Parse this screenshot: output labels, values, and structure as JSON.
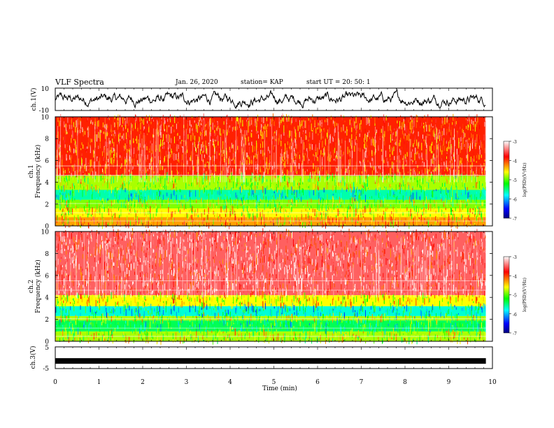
{
  "header": {
    "title": "VLF Spectra",
    "date": "Jan. 26, 2020",
    "station": "station= KAP",
    "start_ut": "start  UT =   20: 50: 1"
  },
  "colors": {
    "colormap": [
      "#000080",
      "#0000ff",
      "#00ffff",
      "#00ff00",
      "#ffff00",
      "#ff0000",
      "#ffffff"
    ],
    "waveform": "#000000"
  },
  "chart_data": [
    {
      "type": "line",
      "panel": "ch1-waveform",
      "ylabel": "ch.1(V)",
      "ylim": [
        -10,
        10
      ],
      "yticks": [
        "10",
        "-10"
      ],
      "xlim": [
        0,
        10
      ],
      "description_values": {
        "typical_min": -8,
        "typical_max": 9
      }
    },
    {
      "type": "heatmap",
      "panel": "ch1-spectrogram",
      "ylabel": "ch.1\nFrequency  (kHz)",
      "ylabel_line1": "ch.1",
      "ylabel_line2": "Frequency  (kHz)",
      "ylim": [
        0,
        10
      ],
      "yticks": [
        "0",
        "2",
        "4",
        "6",
        "8",
        "10"
      ],
      "xlim": [
        0,
        9.85
      ],
      "colorbar": {
        "label": "log(PSD)(V²/Hz)",
        "range": [
          -7,
          -3
        ],
        "ticks": [
          "-3",
          "-4",
          "-5",
          "-6",
          "-7"
        ]
      },
      "bands": [
        {
          "f_from": 0,
          "f_to": 0.8,
          "log_psd": -4.3
        },
        {
          "f_from": 0.8,
          "f_to": 1.6,
          "log_psd": -4.6
        },
        {
          "f_from": 1.6,
          "f_to": 2.4,
          "log_psd": -4.9
        },
        {
          "f_from": 2.4,
          "f_to": 3.3,
          "log_psd": -5.6
        },
        {
          "f_from": 3.3,
          "f_to": 4.6,
          "log_psd": -4.8
        },
        {
          "f_from": 4.6,
          "f_to": 10,
          "log_psd": -3.9
        }
      ]
    },
    {
      "type": "heatmap",
      "panel": "ch2-spectrogram",
      "ylabel_line1": "ch.2",
      "ylabel_line2": "Frequency  (kHz)",
      "ylim": [
        0,
        10
      ],
      "yticks": [
        "0",
        "2",
        "4",
        "6",
        "8",
        "10"
      ],
      "xlim": [
        0,
        9.85
      ],
      "colorbar": {
        "label": "log(PSD)(V²/Hz)",
        "range": [
          -7,
          -3
        ],
        "ticks": [
          "-3",
          "-4",
          "-5",
          "-6",
          "-7"
        ]
      },
      "bands": [
        {
          "f_from": 0,
          "f_to": 0.9,
          "log_psd": -4.8
        },
        {
          "f_from": 0.9,
          "f_to": 1.9,
          "log_psd": -5.4
        },
        {
          "f_from": 1.9,
          "f_to": 2.3,
          "log_psd": -4.8
        },
        {
          "f_from": 2.3,
          "f_to": 3.2,
          "log_psd": -5.7
        },
        {
          "f_from": 3.2,
          "f_to": 4.2,
          "log_psd": -4.6
        },
        {
          "f_from": 4.2,
          "f_to": 10,
          "log_psd": -3.5
        }
      ]
    },
    {
      "type": "line",
      "panel": "ch3-waveform",
      "ylabel": "ch.3(V)",
      "ylim": [
        -5,
        5
      ],
      "yticks": [
        "5",
        "-5"
      ],
      "xlim": [
        0,
        10
      ],
      "level": -1.5
    }
  ],
  "xaxis": {
    "xlabel": "Time  (min)",
    "ticks": [
      "0",
      "1",
      "2",
      "3",
      "4",
      "5",
      "6",
      "7",
      "8",
      "9",
      "10"
    ]
  }
}
